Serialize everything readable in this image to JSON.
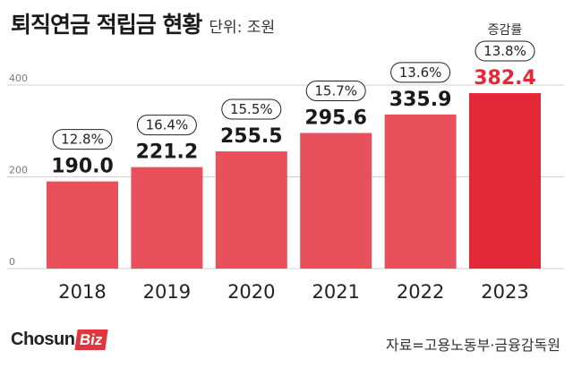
{
  "header": {
    "title": "퇴직연금 적립금 현황",
    "unit": "단위: 조원"
  },
  "footer": {
    "logo_main": "Chosun",
    "logo_box": "Biz",
    "source": "자료=고용노동부·금융감독원"
  },
  "colors": {
    "bar": "#e8515c",
    "bar_highlight": "#e32837",
    "highlight_label": "#e32837",
    "label": "#1a1a1a",
    "grid": "#d0d0d0"
  },
  "chart_data": {
    "type": "bar",
    "categories": [
      "2018",
      "2019",
      "2020",
      "2021",
      "2022",
      "2023"
    ],
    "values": [
      190.0,
      221.2,
      255.5,
      295.6,
      335.9,
      382.4
    ],
    "value_labels": [
      "190.0",
      "221.2",
      "255.5",
      "295.6",
      "335.9",
      "382.4"
    ],
    "growth_rates": [
      "12.8%",
      "16.4%",
      "15.5%",
      "15.7%",
      "13.6%",
      "13.8%"
    ],
    "growth_header": "증감률",
    "highlight_index": 5,
    "yticks": [
      0,
      200,
      400
    ],
    "ytick_labels": [
      "0",
      "200",
      "400"
    ],
    "ylim": [
      0,
      400
    ],
    "grid": true,
    "legend": "none"
  }
}
